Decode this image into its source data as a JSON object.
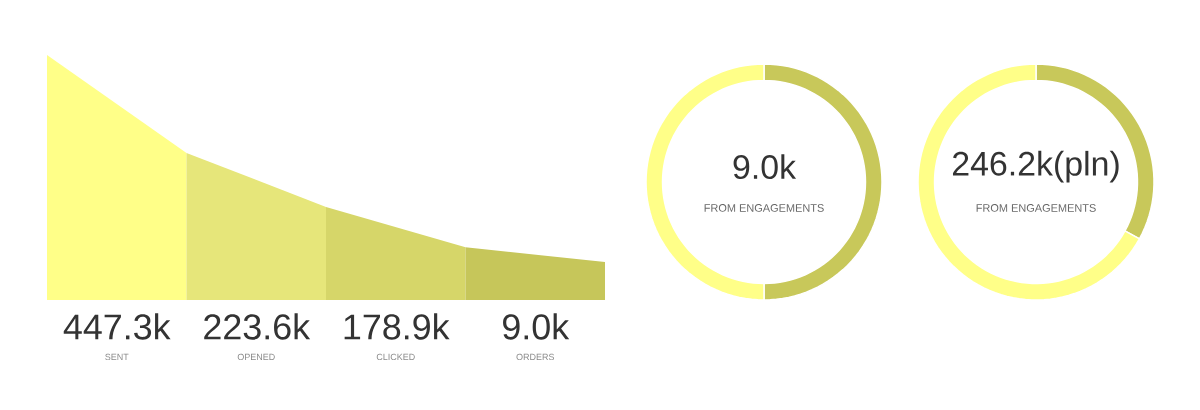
{
  "chart_data": [
    {
      "type": "other",
      "categories": [
        "SENT",
        "OPENED",
        "CLICKED",
        "ORDERS"
      ],
      "values": [
        447.3,
        223.6,
        178.9,
        9.0
      ],
      "value_labels": [
        "447.3k",
        "223.6k",
        "178.9k",
        "9.0k"
      ],
      "colors": [
        "#ffff88",
        "#e6e67a",
        "#d6d669",
        "#c6c65a"
      ]
    },
    {
      "type": "donut",
      "title": "9.0k",
      "subtitle": "FROM ENGAGEMENTS",
      "categories": [
        null,
        null
      ],
      "values": [
        50,
        50
      ],
      "colors": [
        "#c8c85a",
        "#ffff88"
      ]
    },
    {
      "type": "donut",
      "title": "246.2k(pln)",
      "subtitle": "FROM ENGAGEMENTS",
      "categories": [
        null,
        null
      ],
      "values": [
        33,
        67
      ],
      "colors": [
        "#c8c85a",
        "#ffff88"
      ]
    }
  ]
}
